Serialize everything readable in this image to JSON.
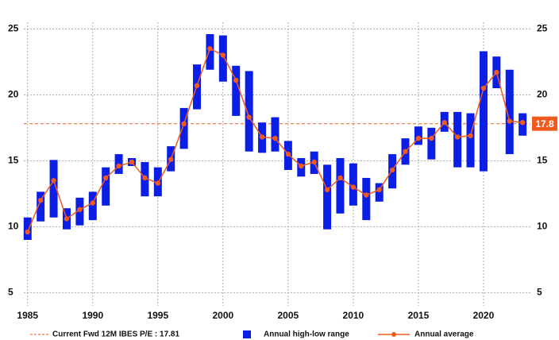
{
  "chart_data": {
    "type": "range-bar-line",
    "x": [
      1985,
      1986,
      1987,
      1988,
      1989,
      1990,
      1991,
      1992,
      1993,
      1994,
      1995,
      1996,
      1997,
      1998,
      1999,
      2000,
      2001,
      2002,
      2003,
      2004,
      2005,
      2006,
      2007,
      2008,
      2009,
      2010,
      2011,
      2012,
      2013,
      2014,
      2015,
      2016,
      2017,
      2018,
      2019,
      2020,
      2021,
      2022,
      2023
    ],
    "series": [
      {
        "name": "Annual high-low range",
        "color": "#0a1ee6",
        "low": [
          9.0,
          10.4,
          10.7,
          9.8,
          10.1,
          10.5,
          11.6,
          14.0,
          14.6,
          12.3,
          12.3,
          14.2,
          15.9,
          18.9,
          21.9,
          21.0,
          18.4,
          15.7,
          15.6,
          15.7,
          14.3,
          13.8,
          14.0,
          9.8,
          11.0,
          11.6,
          10.5,
          11.9,
          12.9,
          14.7,
          16.2,
          15.1,
          17.2,
          14.5,
          14.5,
          14.2,
          20.5,
          15.5,
          16.9
        ],
        "high": [
          10.7,
          12.65,
          15.06,
          11.4,
          12.2,
          12.65,
          14.5,
          15.5,
          15.2,
          14.9,
          14.5,
          16.1,
          19.0,
          22.3,
          24.6,
          24.5,
          22.2,
          21.8,
          17.9,
          18.3,
          16.5,
          15.2,
          15.7,
          14.7,
          15.2,
          14.8,
          13.7,
          13.3,
          15.5,
          16.7,
          17.6,
          17.5,
          18.7,
          18.7,
          18.6,
          23.3,
          22.9,
          21.9,
          18.6
        ]
      },
      {
        "name": "Annual average",
        "color": "#f05a1e",
        "values": [
          9.6,
          12.0,
          13.5,
          10.6,
          11.3,
          11.8,
          13.7,
          14.6,
          14.9,
          13.7,
          13.3,
          15.1,
          17.8,
          20.7,
          23.5,
          23.0,
          21.1,
          18.3,
          16.8,
          16.7,
          15.5,
          14.6,
          14.9,
          12.8,
          13.7,
          13.0,
          12.4,
          12.8,
          14.3,
          15.7,
          16.7,
          16.7,
          17.9,
          16.8,
          16.9,
          20.5,
          21.7,
          18.0,
          17.9
        ]
      }
    ],
    "reference": {
      "name": "Current Fwd 12M IBES P/E : 17.81",
      "value": 17.81,
      "label": "17.8",
      "color": "#f05a1e"
    },
    "xlim": [
      1984.1,
      2023.6
    ],
    "xticks": [
      1985,
      1990,
      1995,
      2000,
      2005,
      2010,
      2015,
      2020
    ],
    "ylim": [
      4,
      25.5
    ],
    "yticks": [
      5,
      10,
      15,
      20,
      25
    ],
    "y2lim": [
      4,
      25.5
    ],
    "y2ticks": [
      5,
      10,
      15,
      20,
      25
    ],
    "grid": true
  }
}
